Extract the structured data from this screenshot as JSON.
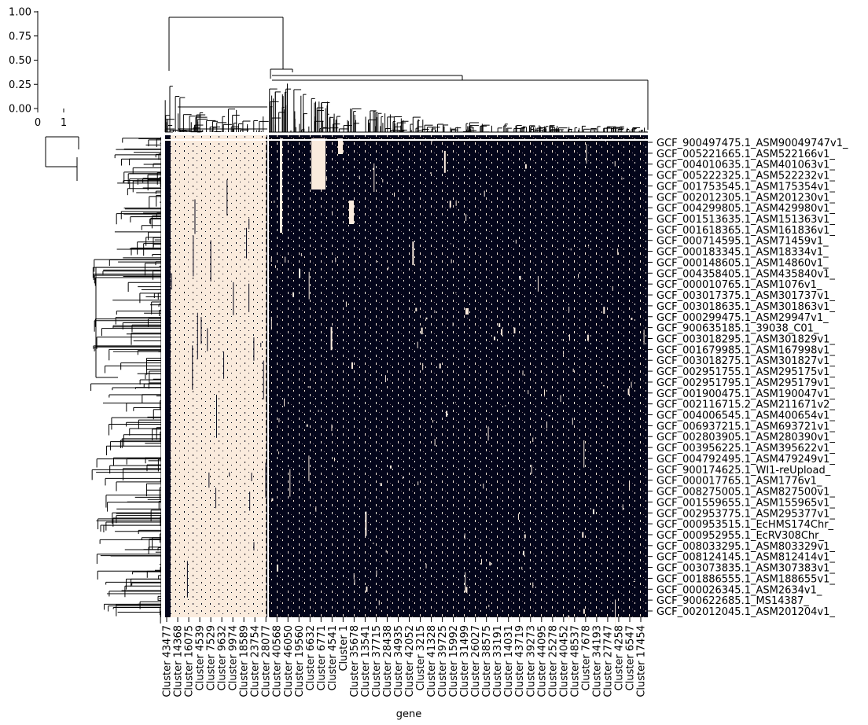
{
  "chart_data": {
    "type": "heatmap",
    "subtype": "clustermap",
    "xlabel": "gene",
    "ylabel": "",
    "colorbar": {
      "ticks": [
        "0.00",
        "0.25",
        "0.50",
        "0.75",
        "1.00"
      ],
      "tick_values": [
        0,
        0.25,
        0.5,
        0.75,
        1.0
      ],
      "x_ticks": [
        "0",
        "1"
      ],
      "low_color": "#03051a",
      "high_color": "#faebdd"
    },
    "column_labels": [
      "Cluster 43477",
      "Cluster 14368",
      "Cluster 16075",
      "Cluster 4539",
      "Cluster 7529",
      "Cluster 9632",
      "Cluster 9974",
      "Cluster 18589",
      "Cluster 23754",
      "Cluster 28077",
      "Cluster 40568",
      "Cluster 46050",
      "Cluster 19560",
      "Cluster 6632",
      "Cluster 6771",
      "Cluster 4541",
      "Cluster 1",
      "Cluster 35678",
      "Cluster 13541",
      "Cluster 37715",
      "Cluster 28438",
      "Cluster 34935",
      "Cluster 42052",
      "Cluster 3215",
      "Cluster 41328",
      "Cluster 39725",
      "Cluster 15992",
      "Cluster 31499",
      "Cluster 26027",
      "Cluster 38575",
      "Cluster 33191",
      "Cluster 14031",
      "Cluster 43719",
      "Cluster 39273",
      "Cluster 44095",
      "Cluster 25278",
      "Cluster 40452",
      "Cluster 48537",
      "Cluster 7678",
      "Cluster 34193",
      "Cluster 27747",
      "Cluster 4258",
      "Cluster 6547",
      "Cluster 17454"
    ],
    "row_labels": [
      "GCF_900497475.1_ASM90049747v1_",
      "GCF_005221665.1_ASM522166v1_",
      "GCF_004010635.1_ASM401063v1_",
      "GCF_005222325.1_ASM522232v1_",
      "GCF_001753545.1_ASM175354v1_",
      "GCF_002012305.1_ASM201230v1_",
      "GCF_004299805.1_ASM429980v1_",
      "GCF_001513635.1_ASM151363v1_",
      "GCF_001618365.1_ASM161836v1_",
      "GCF_000714595.1_ASM71459v1_",
      "GCF_000183345.1_ASM18334v1_",
      "GCF_000148605.1_ASM14860v1_",
      "GCF_004358405.1_ASM435840v1_",
      "GCF_000010765.1_ASM1076v1_",
      "GCF_003017375.1_ASM301737v1_",
      "GCF_003018635.1_ASM301863v1_",
      "GCF_000299475.1_ASM29947v1_",
      "GCF_900635185.1_39038_C01_",
      "GCF_003018295.1_ASM301829v1_",
      "GCF_001679985.1_ASM167998v1_",
      "GCF_003018275.1_ASM301827v1_",
      "GCF_002951755.1_ASM295175v1_",
      "GCF_002951795.1_ASM295179v1_",
      "GCF_001900475.1_ASM190047v1_",
      "GCF_002116715.2_ASM211671v2_",
      "GCF_004006545.1_ASM400654v1_",
      "GCF_006937215.1_ASM693721v1_",
      "GCF_002803905.1_ASM280390v1_",
      "GCF_003956225.1_ASM395622v1_",
      "GCF_004792495.1_ASM479249v1_",
      "GCF_900174625.1_WI1-reUpload_",
      "GCF_000017765.1_ASM1776v1_",
      "GCF_008275005.1_ASM827500v1_",
      "GCF_001559655.1_ASM155965v1_",
      "GCF_002953775.1_ASM295377v1_",
      "GCF_000953515.1_EcHMS174Chr_",
      "GCF_000952955.1_EcRV308Chr_",
      "GCF_008033295.1_ASM803329v1_",
      "GCF_008124145.1_ASM812414v1_",
      "GCF_003073835.1_ASM307383v1_",
      "GCF_001886555.1_ASM188655v1_",
      "GCF_000026345.1_ASM2634v1_",
      "GCF_900622685.1_MS14387_",
      "GCF_002012045.1_ASM201204v1_"
    ]
  }
}
